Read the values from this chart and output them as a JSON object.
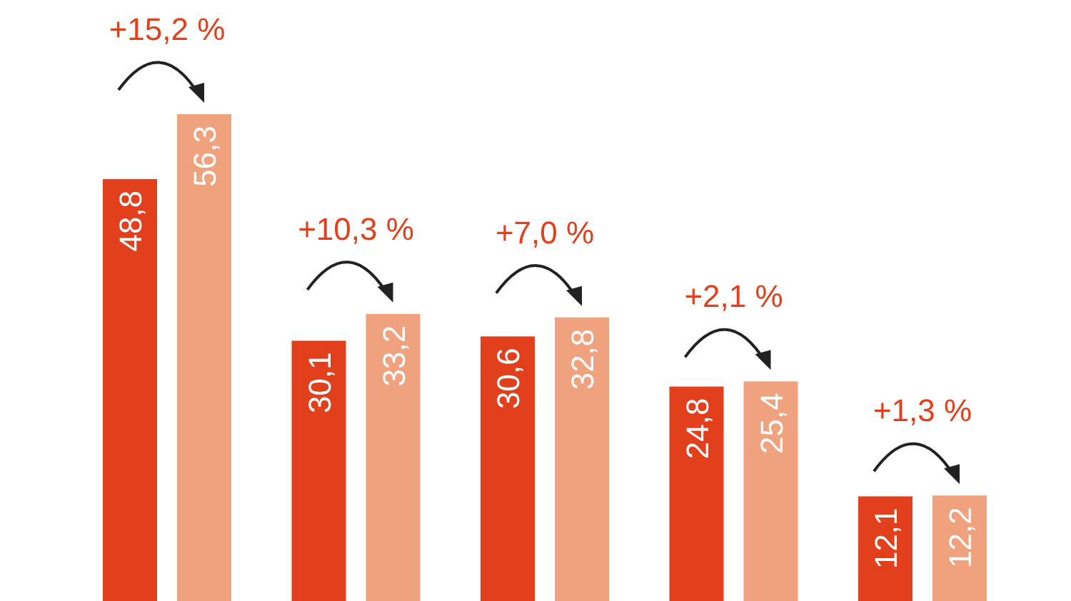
{
  "chart_data": {
    "type": "bar",
    "categories": [
      null,
      null,
      null,
      null,
      null
    ],
    "series": [
      {
        "color": "#e2401c",
        "values": [
          48.8,
          30.1,
          30.6,
          24.8,
          12.1
        ],
        "value_labels": [
          "48,8",
          "30,1",
          "30,6",
          "24,8",
          "12,1"
        ]
      },
      {
        "color": "#f0a27f",
        "values": [
          56.3,
          33.2,
          32.8,
          25.4,
          12.2
        ],
        "value_labels": [
          "56,3",
          "33,2",
          "32,8",
          "25,4",
          "12,2"
        ]
      }
    ],
    "annotations": [
      "+15,2 %",
      "+10,3 %",
      "+7,0 %",
      "+2,1 %",
      "+1,3 %"
    ]
  }
}
